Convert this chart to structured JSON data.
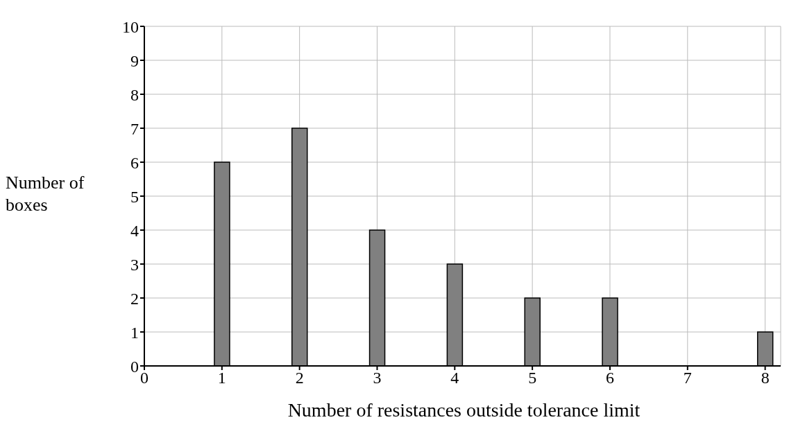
{
  "chart_data": {
    "type": "bar",
    "xlabel": "Number of resistances outside tolerance limit",
    "ylabel": "Number of boxes",
    "x": [
      1,
      2,
      3,
      4,
      5,
      6,
      7,
      8
    ],
    "values": [
      6,
      7,
      4,
      3,
      2,
      2,
      0,
      1
    ],
    "color": "#808080",
    "xlim": [
      0,
      8.2
    ],
    "xticks": [
      0,
      1,
      2,
      3,
      4,
      5,
      6,
      7,
      8
    ],
    "ylim": [
      0,
      10
    ],
    "yticks": [
      0,
      1,
      2,
      3,
      4,
      5,
      6,
      7,
      8,
      9,
      10
    ],
    "grid": true
  }
}
